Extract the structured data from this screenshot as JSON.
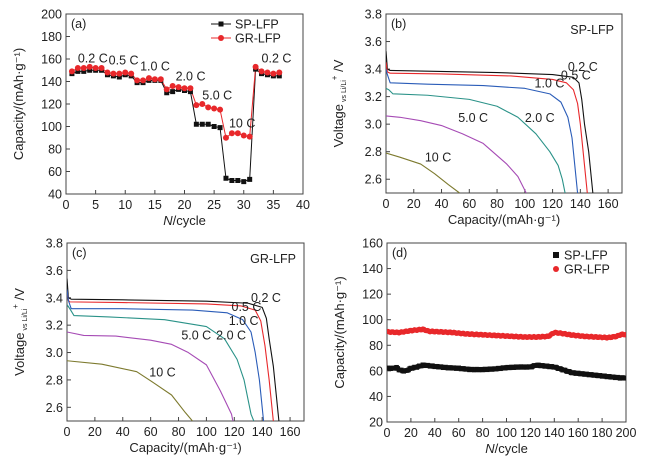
{
  "chart_data": [
    {
      "id": "a",
      "type": "line",
      "panel_label": "(a)",
      "xlabel_italic": "N",
      "xlabel_rest": "/cycle",
      "ylabel": "Capacity/(mAh·g⁻¹)",
      "xlim": [
        0,
        40
      ],
      "ylim": [
        40,
        200
      ],
      "xticks": [
        0,
        5,
        10,
        15,
        20,
        25,
        30,
        35,
        40
      ],
      "yticks": [
        40,
        60,
        80,
        100,
        120,
        140,
        160,
        180,
        200
      ],
      "legend": {
        "placement": "top-right",
        "marker_style": "line-marker"
      },
      "annotations": [
        {
          "text": "0.2 C",
          "x": 2,
          "y": 157
        },
        {
          "text": "0.5 C",
          "x": 7.2,
          "y": 155
        },
        {
          "text": "1.0 C",
          "x": 12.5,
          "y": 150
        },
        {
          "text": "2.0 C",
          "x": 18.5,
          "y": 141
        },
        {
          "text": "5.0 C",
          "x": 23,
          "y": 124
        },
        {
          "text": "10 C",
          "x": 27.5,
          "y": 99
        },
        {
          "text": "0.2 C",
          "x": 33,
          "y": 157
        }
      ],
      "x": [
        1,
        2,
        3,
        4,
        5,
        6,
        7,
        8,
        9,
        10,
        11,
        12,
        13,
        14,
        15,
        16,
        17,
        18,
        19,
        20,
        21,
        22,
        23,
        24,
        25,
        26,
        27,
        28,
        29,
        30,
        31,
        32,
        33,
        34,
        35,
        36
      ],
      "series": [
        {
          "name": "SP-LFP",
          "color": "#111111",
          "marker": "square",
          "values": [
            147,
            149,
            149,
            150,
            150,
            150,
            146,
            145,
            144,
            146,
            145,
            139,
            139,
            141,
            141,
            141,
            130,
            131,
            133,
            132,
            131,
            102,
            102,
            102,
            100,
            99,
            54,
            52,
            52,
            51,
            53,
            151,
            147,
            146,
            145,
            145
          ]
        },
        {
          "name": "GR-LFP",
          "color": "#e8282b",
          "marker": "circle",
          "values": [
            149,
            152,
            152,
            153,
            152,
            152,
            148,
            147,
            147,
            148,
            147,
            141,
            141,
            143,
            142,
            142,
            133,
            136,
            135,
            134,
            134,
            119,
            120,
            117,
            116,
            115,
            90,
            94,
            94,
            92,
            91,
            153,
            149,
            148,
            147,
            148
          ]
        }
      ]
    },
    {
      "id": "b",
      "type": "line",
      "panel_label": "(b)",
      "title_inside": "SP-LFP",
      "xlabel": "Capacity/(mAh·g⁻¹)",
      "ylabel_main": "Voltage",
      "ylabel_sub": "vs Li/Li",
      "ylabel_sup": "+",
      "ylabel_tail": " /V",
      "xlim": [
        0,
        170
      ],
      "ylim": [
        2.5,
        3.8
      ],
      "xticks": [
        0,
        20,
        40,
        60,
        80,
        100,
        120,
        140,
        160
      ],
      "yticks": [
        2.6,
        2.8,
        3.0,
        3.2,
        3.4,
        3.6,
        3.8
      ],
      "ytick_labels": [
        "2.6",
        "2.8",
        "3.0",
        "3.2",
        "3.4",
        "3.6",
        "3.8"
      ],
      "series": [
        {
          "name": "0.2 C",
          "color": "#111111",
          "label_at": [
            131,
            3.385
          ],
          "points": [
            [
              0,
              3.53
            ],
            [
              1,
              3.4
            ],
            [
              3,
              3.39
            ],
            [
              30,
              3.385
            ],
            [
              80,
              3.375
            ],
            [
              120,
              3.36
            ],
            [
              135,
              3.34
            ],
            [
              139,
              3.3
            ],
            [
              141,
              3.18
            ],
            [
              143,
              3.0
            ],
            [
              146,
              2.8
            ],
            [
              149,
              2.5
            ]
          ]
        },
        {
          "name": "0.5 C",
          "color": "#e8282b",
          "label_at": [
            126,
            3.325
          ],
          "points": [
            [
              0,
              3.45
            ],
            [
              1,
              3.38
            ],
            [
              3,
              3.37
            ],
            [
              40,
              3.365
            ],
            [
              90,
              3.35
            ],
            [
              120,
              3.325
            ],
            [
              130,
              3.3
            ],
            [
              135,
              3.25
            ],
            [
              138,
              3.15
            ],
            [
              140,
              3.0
            ],
            [
              142,
              2.8
            ],
            [
              145,
              2.5
            ]
          ]
        },
        {
          "name": "1.0 C",
          "color": "#2a5cb8",
          "label_at": [
            107,
            3.265
          ],
          "points": [
            [
              0,
              3.4
            ],
            [
              1,
              3.36
            ],
            [
              3,
              3.3
            ],
            [
              30,
              3.29
            ],
            [
              70,
              3.28
            ],
            [
              100,
              3.26
            ],
            [
              118,
              3.22
            ],
            [
              126,
              3.16
            ],
            [
              131,
              3.05
            ],
            [
              134,
              2.9
            ],
            [
              136,
              2.7
            ],
            [
              138,
              2.5
            ]
          ]
        },
        {
          "name": "2.0 C",
          "color": "#2a9288",
          "label_at": [
            100,
            3.015
          ],
          "points": [
            [
              0,
              3.26
            ],
            [
              2,
              3.25
            ],
            [
              5,
              3.22
            ],
            [
              30,
              3.21
            ],
            [
              60,
              3.18
            ],
            [
              80,
              3.13
            ],
            [
              95,
              3.05
            ],
            [
              108,
              2.93
            ],
            [
              118,
              2.8
            ],
            [
              124,
              2.7
            ],
            [
              127,
              2.6
            ],
            [
              129,
              2.5
            ]
          ]
        },
        {
          "name": "5.0 C",
          "color": "#a64bb5",
          "label_at": [
            52,
            3.015
          ],
          "points": [
            [
              0,
              3.06
            ],
            [
              10,
              3.05
            ],
            [
              25,
              3.025
            ],
            [
              40,
              2.99
            ],
            [
              55,
              2.93
            ],
            [
              70,
              2.86
            ],
            [
              87,
              2.71
            ],
            [
              95,
              2.62
            ],
            [
              100,
              2.52
            ],
            [
              101,
              2.5
            ]
          ]
        },
        {
          "name": "10 C",
          "color": "#7d7a2e",
          "label_at": [
            28,
            2.73
          ],
          "points": [
            [
              0,
              2.79
            ],
            [
              10,
              2.76
            ],
            [
              25,
              2.71
            ],
            [
              35,
              2.64
            ],
            [
              45,
              2.56
            ],
            [
              53,
              2.5
            ]
          ]
        }
      ]
    },
    {
      "id": "c",
      "type": "line",
      "panel_label": "(c)",
      "title_inside": "GR-LFP",
      "xlabel": "Capacity/(mAh·g⁻¹)",
      "ylabel_main": "Voltage",
      "ylabel_sub": "vs Li/Li",
      "ylabel_sup": "+",
      "ylabel_tail": " /V",
      "xlim": [
        0,
        170
      ],
      "ylim": [
        2.5,
        3.8
      ],
      "xticks": [
        0,
        20,
        40,
        60,
        80,
        100,
        120,
        140,
        160
      ],
      "yticks": [
        2.6,
        2.8,
        3.0,
        3.2,
        3.4,
        3.6,
        3.8
      ],
      "ytick_labels": [
        "2.6",
        "2.8",
        "3.0",
        "3.2",
        "3.4",
        "3.6",
        "3.8"
      ],
      "series": [
        {
          "name": "0.2 C",
          "color": "#111111",
          "label_at": [
            132,
            3.37
          ],
          "points": [
            [
              0,
              3.54
            ],
            [
              1,
              3.4
            ],
            [
              3,
              3.39
            ],
            [
              40,
              3.385
            ],
            [
              100,
              3.375
            ],
            [
              130,
              3.36
            ],
            [
              140,
              3.33
            ],
            [
              143,
              3.25
            ],
            [
              145,
              3.1
            ],
            [
              148,
              2.9
            ],
            [
              150,
              2.7
            ],
            [
              152,
              2.5
            ]
          ]
        },
        {
          "name": "0.5 C",
          "color": "#e8282b",
          "label_at": [
            118,
            3.305
          ],
          "points": [
            [
              0,
              3.45
            ],
            [
              1,
              3.38
            ],
            [
              2,
              3.37
            ],
            [
              40,
              3.365
            ],
            [
              100,
              3.355
            ],
            [
              125,
              3.34
            ],
            [
              135,
              3.31
            ],
            [
              139,
              3.23
            ],
            [
              142,
              3.05
            ],
            [
              145,
              2.8
            ],
            [
              148,
              2.5
            ]
          ]
        },
        {
          "name": "1.0 C",
          "color": "#2a5cb8",
          "label_at": [
            116,
            3.2
          ],
          "points": [
            [
              0,
              3.46
            ],
            [
              1,
              3.38
            ],
            [
              3,
              3.32
            ],
            [
              40,
              3.32
            ],
            [
              90,
              3.31
            ],
            [
              115,
              3.29
            ],
            [
              126,
              3.24
            ],
            [
              132,
              3.15
            ],
            [
              135,
              3.0
            ],
            [
              138,
              2.8
            ],
            [
              140,
              2.6
            ],
            [
              141,
              2.5
            ]
          ]
        },
        {
          "name": "2.0 C",
          "color": "#2a9288",
          "label_at": [
            107,
            3.095
          ],
          "points": [
            [
              0,
              3.35
            ],
            [
              2,
              3.32
            ],
            [
              5,
              3.27
            ],
            [
              30,
              3.26
            ],
            [
              70,
              3.24
            ],
            [
              100,
              3.19
            ],
            [
              113,
              3.1
            ],
            [
              122,
              2.95
            ],
            [
              127,
              2.8
            ],
            [
              130,
              2.65
            ],
            [
              132,
              2.55
            ],
            [
              134,
              2.5
            ]
          ]
        },
        {
          "name": "5.0 C",
          "color": "#a64bb5",
          "label_at": [
            82,
            3.095
          ],
          "points": [
            [
              0,
              3.15
            ],
            [
              12,
              3.125
            ],
            [
              35,
              3.12
            ],
            [
              60,
              3.09
            ],
            [
              75,
              3.06
            ],
            [
              87,
              3.0
            ],
            [
              100,
              2.91
            ],
            [
              110,
              2.72
            ],
            [
              118,
              2.55
            ],
            [
              119,
              2.5
            ]
          ]
        },
        {
          "name": "10 C",
          "color": "#7d7a2e",
          "label_at": [
            59,
            2.825
          ],
          "points": [
            [
              0,
              2.94
            ],
            [
              25,
              2.915
            ],
            [
              50,
              2.86
            ],
            [
              62,
              2.78
            ],
            [
              75,
              2.69
            ],
            [
              85,
              2.56
            ],
            [
              90,
              2.5
            ]
          ]
        }
      ]
    },
    {
      "id": "d",
      "type": "scatter",
      "panel_label": "(d)",
      "xlabel_italic": "N",
      "xlabel_rest": "/cycle",
      "ylabel": "Capacity/(mAh·g⁻¹)",
      "xlim": [
        0,
        200
      ],
      "ylim": [
        20,
        160
      ],
      "xticks": [
        0,
        20,
        40,
        60,
        80,
        100,
        120,
        140,
        160,
        180,
        200
      ],
      "yticks": [
        20,
        40,
        60,
        80,
        100,
        120,
        140,
        160
      ],
      "legend": {
        "placement": "top-right",
        "marker_style": "marker-only"
      },
      "series": [
        {
          "name": "SP-LFP",
          "color": "#111111",
          "marker": "square",
          "points": [
            [
              1,
              62
            ],
            [
              5,
              62
            ],
            [
              8,
              62.5
            ],
            [
              10,
              61
            ],
            [
              13,
              60
            ],
            [
              16,
              60
            ],
            [
              20,
              62
            ],
            [
              25,
              63
            ],
            [
              30,
              64.5
            ],
            [
              35,
              64
            ],
            [
              40,
              63.5
            ],
            [
              50,
              62.5
            ],
            [
              60,
              62
            ],
            [
              70,
              61
            ],
            [
              80,
              61
            ],
            [
              90,
              61.5
            ],
            [
              100,
              62.5
            ],
            [
              110,
              63
            ],
            [
              120,
              63
            ],
            [
              125,
              64.5
            ],
            [
              135,
              63.5
            ],
            [
              140,
              63
            ],
            [
              145,
              61.5
            ],
            [
              155,
              58.5
            ],
            [
              165,
              57.5
            ],
            [
              175,
              56.5
            ],
            [
              185,
              55.5
            ],
            [
              195,
              54.5
            ],
            [
              200,
              54.5
            ]
          ]
        },
        {
          "name": "GR-LFP",
          "color": "#e8282b",
          "marker": "circle",
          "points": [
            [
              1,
              90.5
            ],
            [
              10,
              90
            ],
            [
              20,
              91.5
            ],
            [
              30,
              92.5
            ],
            [
              35,
              91
            ],
            [
              45,
              90.5
            ],
            [
              55,
              90
            ],
            [
              65,
              89
            ],
            [
              75,
              88.5
            ],
            [
              85,
              88
            ],
            [
              95,
              87.5
            ],
            [
              105,
              87
            ],
            [
              115,
              86.5
            ],
            [
              125,
              86.5
            ],
            [
              135,
              87
            ],
            [
              140,
              90
            ],
            [
              145,
              89.5
            ],
            [
              155,
              88
            ],
            [
              165,
              87
            ],
            [
              175,
              86.5
            ],
            [
              185,
              86
            ],
            [
              192,
              87
            ],
            [
              196,
              88.5
            ],
            [
              200,
              88.5
            ]
          ]
        }
      ]
    }
  ]
}
